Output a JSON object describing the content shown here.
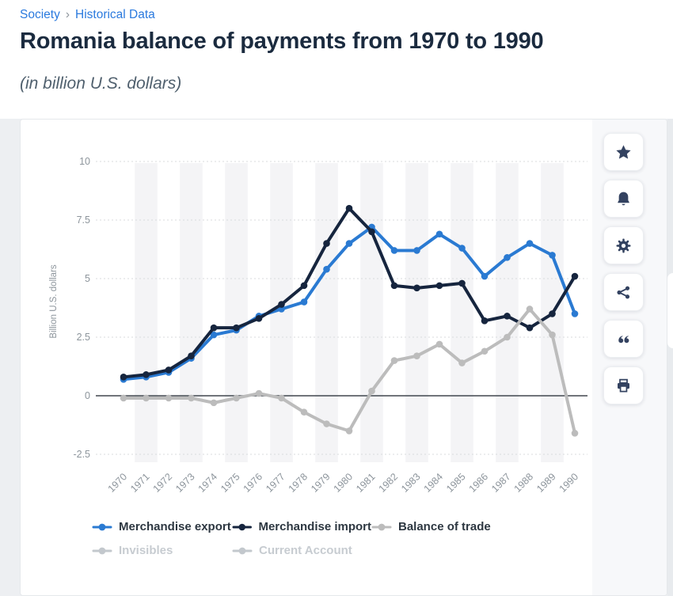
{
  "breadcrumb": {
    "items": [
      "Society",
      "Historical Data"
    ],
    "separator": "›"
  },
  "title": "Romania balance of payments from 1970 to 1990",
  "subtitle": "(in billion U.S. dollars)",
  "colors": {
    "link": "#2b7ade",
    "title": "#1b2b3f",
    "subtitle": "#50606e",
    "axis_text": "#8d959c",
    "gridline": "#d8dbde",
    "zero_line": "#40464e",
    "plot_band": "#f4f4f6",
    "page_background": "#edeff2",
    "icon": "#334260",
    "legend_text": "#2d3741",
    "disabled_text": "#c7ccd1",
    "export_blue": "#2a7ad2",
    "import_navy": "#16253e",
    "trade_gray": "#bcbcbc"
  },
  "action_buttons": [
    {
      "name": "favorite",
      "icon": "star"
    },
    {
      "name": "notifications",
      "icon": "bell"
    },
    {
      "name": "settings",
      "icon": "gear"
    },
    {
      "name": "share",
      "icon": "share"
    },
    {
      "name": "cite",
      "icon": "quote"
    },
    {
      "name": "print",
      "icon": "printer"
    }
  ],
  "chart_data": {
    "type": "line",
    "title": "Romania balance of payments from 1970 to 1990",
    "xlabel": "",
    "ylabel": "Billion U.S. dollars",
    "x": [
      1970,
      1971,
      1972,
      1973,
      1974,
      1975,
      1976,
      1977,
      1978,
      1979,
      1980,
      1981,
      1982,
      1983,
      1984,
      1985,
      1986,
      1987,
      1988,
      1989,
      1990
    ],
    "series": [
      {
        "name": "Merchandise export",
        "color": "#2a7ad2",
        "enabled": true,
        "values": [
          0.7,
          0.8,
          1.0,
          1.6,
          2.6,
          2.8,
          3.4,
          3.7,
          4.0,
          5.4,
          6.5,
          7.2,
          6.2,
          6.2,
          6.9,
          6.3,
          5.1,
          5.9,
          6.5,
          6.0,
          3.5
        ]
      },
      {
        "name": "Merchandise import",
        "color": "#16253e",
        "enabled": true,
        "values": [
          0.8,
          0.9,
          1.1,
          1.7,
          2.9,
          2.9,
          3.3,
          3.9,
          4.7,
          6.5,
          8.0,
          7.0,
          4.7,
          4.6,
          4.7,
          4.8,
          3.2,
          3.4,
          2.9,
          3.5,
          5.1
        ]
      },
      {
        "name": "Balance of trade",
        "color": "#bcbcbc",
        "enabled": true,
        "values": [
          -0.1,
          -0.1,
          -0.1,
          -0.1,
          -0.3,
          -0.1,
          0.1,
          -0.1,
          -0.7,
          -1.2,
          -1.5,
          0.2,
          1.5,
          1.7,
          2.2,
          1.4,
          1.9,
          2.5,
          3.7,
          2.6,
          -1.6
        ]
      },
      {
        "name": "Invisibles",
        "color": "#c3c8cd",
        "enabled": false,
        "values": []
      },
      {
        "name": "Current Account",
        "color": "#c3c8cd",
        "enabled": false,
        "values": []
      }
    ],
    "ylim": [
      -2.5,
      10
    ],
    "yticks": [
      10,
      7.5,
      5,
      2.5,
      0,
      -2.5
    ],
    "grid": "horizontal-dotted, alternating vertical year bands",
    "legend_position": "bottom"
  }
}
